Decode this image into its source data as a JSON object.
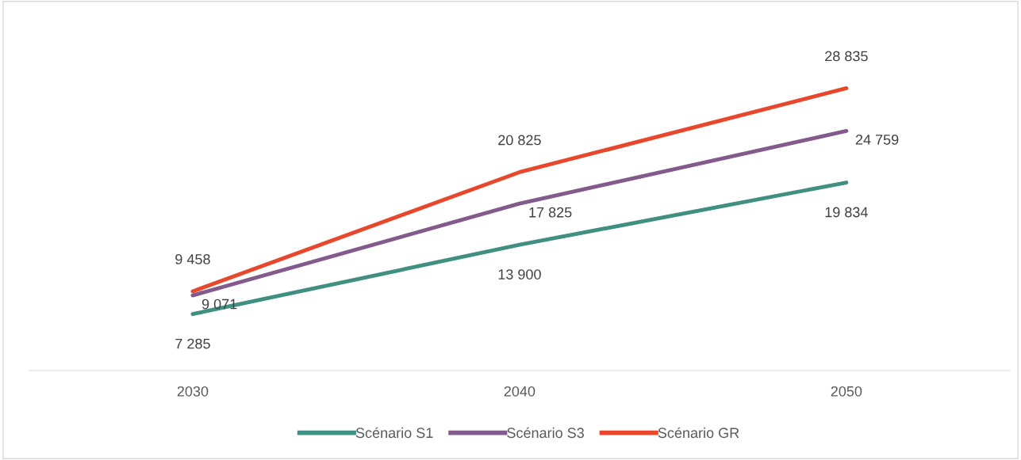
{
  "chart_data": {
    "type": "line",
    "categories": [
      "2030",
      "2040",
      "2050"
    ],
    "series": [
      {
        "name": "Scénario S1",
        "color": "#3f8f82",
        "values": [
          7285,
          13900,
          19834
        ],
        "value_labels": [
          "7 285",
          "13 900",
          "19 834"
        ]
      },
      {
        "name": "Scénario S3",
        "color": "#825a8c",
        "values": [
          9071,
          17825,
          24759
        ],
        "value_labels": [
          "9 071",
          "17 825",
          "24 759"
        ]
      },
      {
        "name": "Scénario GR",
        "color": "#e8472c",
        "values": [
          9458,
          20825,
          28835
        ],
        "value_labels": [
          "9 458",
          "20 825",
          "28 835"
        ]
      }
    ],
    "tick_labels": "x",
    "grid": false,
    "legend": "bottom",
    "marker": "none",
    "line_style": "solid"
  }
}
